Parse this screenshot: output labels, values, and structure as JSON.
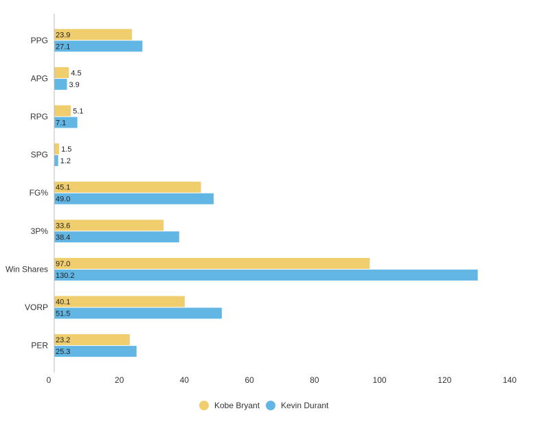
{
  "chart_data": {
    "type": "bar",
    "orientation": "horizontal",
    "categories": [
      "PPG",
      "APG",
      "RPG",
      "SPG",
      "FG%",
      "3P%",
      "Win Shares",
      "VORP",
      "PER"
    ],
    "series": [
      {
        "name": "Kobe Bryant",
        "color": "#F0CE6E",
        "values": [
          23.9,
          4.5,
          5.1,
          1.5,
          45.1,
          33.6,
          97.0,
          40.1,
          23.2
        ],
        "labels": [
          "23.9",
          "4.5",
          "5.1",
          "1.5",
          "45.1",
          "33.6",
          "97.0",
          "40.1",
          "23.2"
        ]
      },
      {
        "name": "Kevin Durant",
        "color": "#62B6E4",
        "values": [
          27.1,
          3.9,
          7.1,
          1.2,
          49.0,
          38.4,
          130.2,
          51.5,
          25.3
        ],
        "labels": [
          "27.1",
          "3.9",
          "7.1",
          "1.2",
          "49.0",
          "38.4",
          "130.2",
          "51.5",
          "25.3"
        ]
      }
    ],
    "xlim": [
      0,
      140
    ],
    "xticks": [
      "0",
      "20",
      "40",
      "60",
      "80",
      "100",
      "120",
      "140"
    ],
    "grid": false,
    "legend_position": "bottom"
  }
}
